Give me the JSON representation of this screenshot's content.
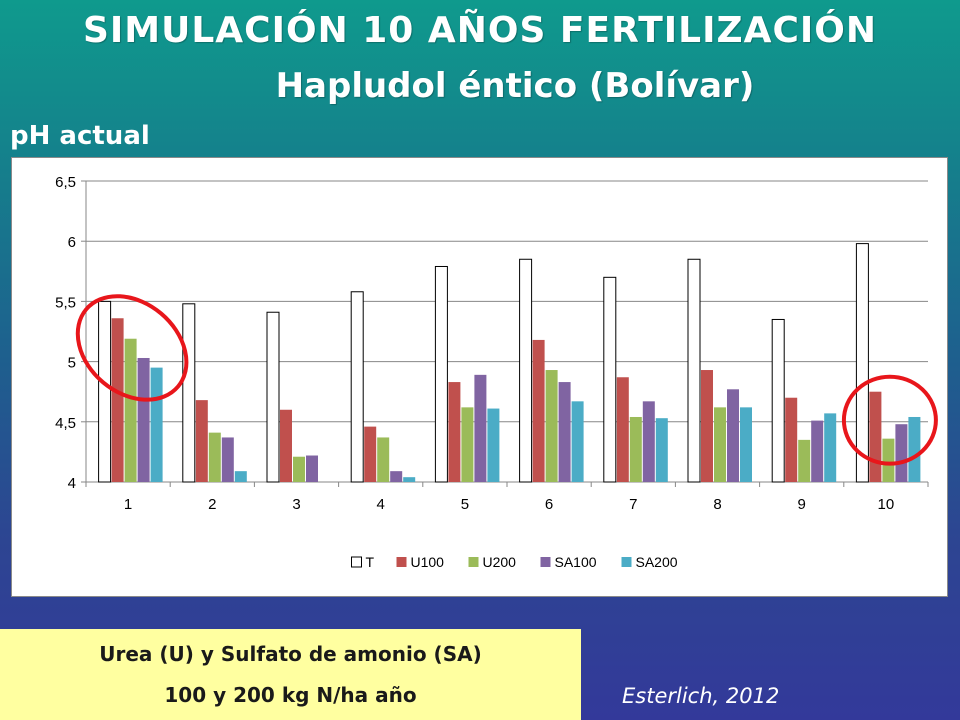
{
  "header": {
    "title": "SIMULACIÓN 10 AÑOS FERTILIZACIÓN",
    "subtitle": "Hapludol éntico (Bolívar)",
    "chart_label": "pH actual"
  },
  "note": {
    "line1": "Urea (U) y Sulfato de amonio (SA)",
    "line2": "100 y 200 kg N/ha año"
  },
  "credit": "Esterlich, 2012",
  "colors": {
    "T": "#ffffff",
    "U100": "#c0504d",
    "U200": "#9bbb59",
    "SA100": "#8064a2",
    "SA200": "#4bacc6",
    "highlight_circle": "#e8161b"
  },
  "chart_data": {
    "type": "bar",
    "title": "",
    "xlabel": "",
    "ylabel": "",
    "ylim": [
      4,
      6.5
    ],
    "yticks": [
      "4",
      "4,5",
      "5",
      "5,5",
      "6",
      "6,5"
    ],
    "categories": [
      "1",
      "2",
      "3",
      "4",
      "5",
      "6",
      "7",
      "8",
      "9",
      "10"
    ],
    "grid": true,
    "legend_position": "bottom",
    "series": [
      {
        "name": "T",
        "values": [
          5.5,
          5.48,
          5.41,
          5.58,
          5.79,
          5.85,
          5.7,
          5.85,
          5.35,
          5.98
        ]
      },
      {
        "name": "U100",
        "values": [
          5.36,
          4.68,
          4.6,
          4.46,
          4.83,
          5.18,
          4.87,
          4.93,
          4.7,
          4.75
        ]
      },
      {
        "name": "U200",
        "values": [
          5.19,
          4.41,
          4.21,
          4.37,
          4.62,
          4.93,
          4.54,
          4.62,
          4.35,
          4.36
        ]
      },
      {
        "name": "SA100",
        "values": [
          5.03,
          4.37,
          4.22,
          4.09,
          4.89,
          4.83,
          4.67,
          4.77,
          4.51,
          4.48
        ]
      },
      {
        "name": "SA200",
        "values": [
          4.95,
          4.09,
          4.0,
          4.04,
          4.61,
          4.67,
          4.53,
          4.62,
          4.57,
          4.54
        ]
      }
    ],
    "highlighted_categories": [
      "1",
      "10"
    ]
  }
}
